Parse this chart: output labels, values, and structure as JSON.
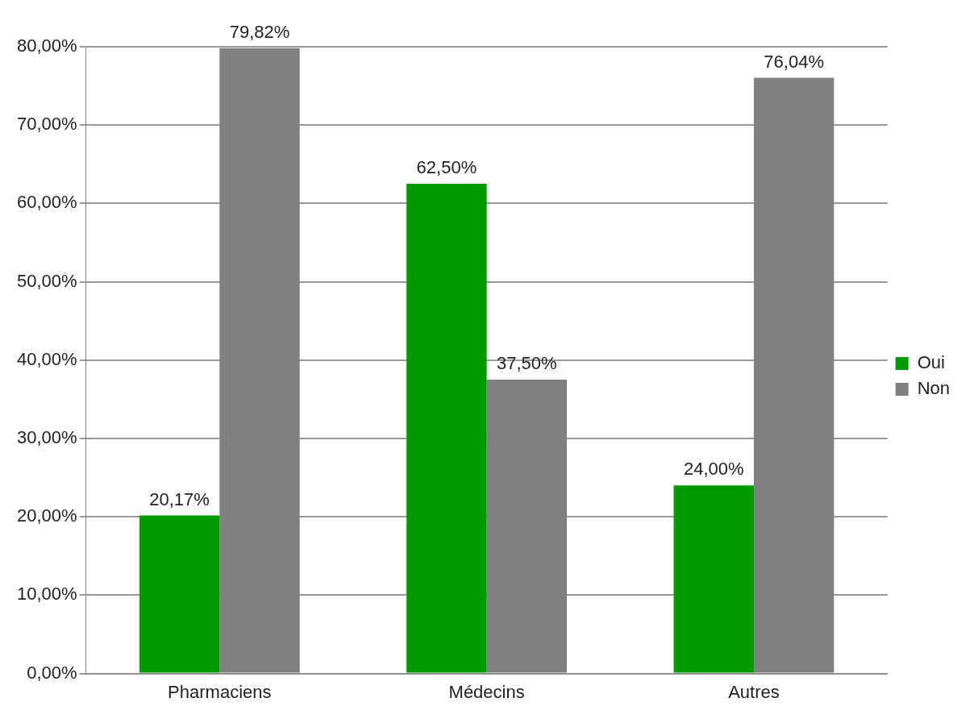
{
  "chart_data": {
    "type": "bar",
    "categories": [
      "Pharmaciens",
      "Médecins",
      "Autres"
    ],
    "series": [
      {
        "name": "Oui",
        "color": "#009900",
        "values": [
          20.17,
          62.5,
          24.0
        ],
        "value_labels": [
          "20,17%",
          "62,50%",
          "24,00%"
        ]
      },
      {
        "name": "Non",
        "color": "#808080",
        "values": [
          79.82,
          37.5,
          76.04
        ],
        "value_labels": [
          "79,82%",
          "37,50%",
          "76,04%"
        ]
      }
    ],
    "ylim": [
      0,
      80
    ],
    "yticks": [
      {
        "value": 0,
        "label": "0,00%"
      },
      {
        "value": 10,
        "label": "10,00%"
      },
      {
        "value": 20,
        "label": "20,00%"
      },
      {
        "value": 30,
        "label": "30,00%"
      },
      {
        "value": 40,
        "label": "40,00%"
      },
      {
        "value": 50,
        "label": "50,00%"
      },
      {
        "value": 60,
        "label": "60,00%"
      },
      {
        "value": 70,
        "label": "70,00%"
      },
      {
        "value": 80,
        "label": "80,00%"
      }
    ],
    "grid": "y",
    "legend": "right"
  }
}
